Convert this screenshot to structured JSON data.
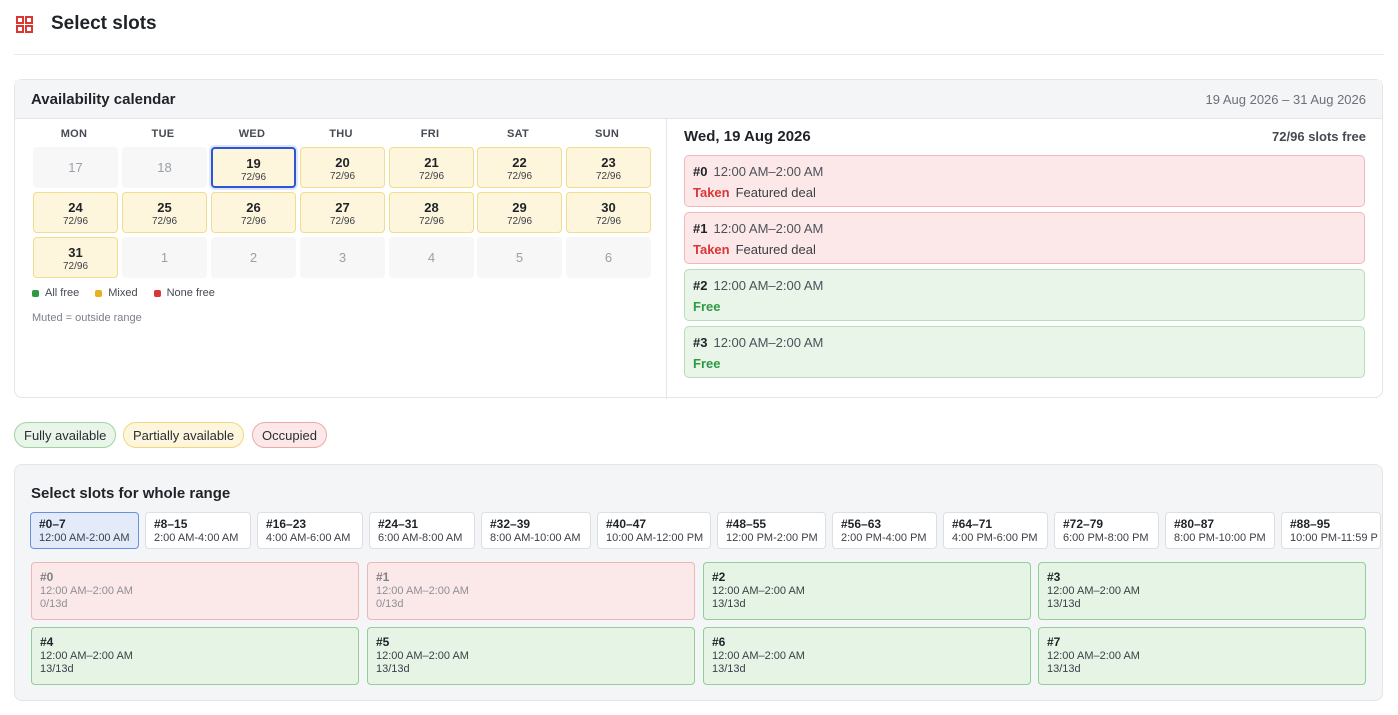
{
  "header": {
    "title": "Select slots",
    "icon": "grid-icon",
    "accent": "#d93636"
  },
  "calendar": {
    "title": "Availability calendar",
    "range": "19 Aug 2026 – 31 Aug 2026",
    "weekdays": [
      "MON",
      "TUE",
      "WED",
      "THU",
      "FRI",
      "SAT",
      "SUN"
    ],
    "days": [
      {
        "n": "17",
        "s": "",
        "state": "muted"
      },
      {
        "n": "18",
        "s": "",
        "state": "muted"
      },
      {
        "n": "19",
        "s": "72/96",
        "state": "mixed",
        "selected": true
      },
      {
        "n": "20",
        "s": "72/96",
        "state": "mixed"
      },
      {
        "n": "21",
        "s": "72/96",
        "state": "mixed"
      },
      {
        "n": "22",
        "s": "72/96",
        "state": "mixed"
      },
      {
        "n": "23",
        "s": "72/96",
        "state": "mixed"
      },
      {
        "n": "24",
        "s": "72/96",
        "state": "mixed"
      },
      {
        "n": "25",
        "s": "72/96",
        "state": "mixed"
      },
      {
        "n": "26",
        "s": "72/96",
        "state": "mixed"
      },
      {
        "n": "27",
        "s": "72/96",
        "state": "mixed"
      },
      {
        "n": "28",
        "s": "72/96",
        "state": "mixed"
      },
      {
        "n": "29",
        "s": "72/96",
        "state": "mixed"
      },
      {
        "n": "30",
        "s": "72/96",
        "state": "mixed"
      },
      {
        "n": "31",
        "s": "72/96",
        "state": "mixed"
      },
      {
        "n": "1",
        "s": "",
        "state": "muted"
      },
      {
        "n": "2",
        "s": "",
        "state": "muted"
      },
      {
        "n": "3",
        "s": "",
        "state": "muted"
      },
      {
        "n": "4",
        "s": "",
        "state": "muted"
      },
      {
        "n": "5",
        "s": "",
        "state": "muted"
      },
      {
        "n": "6",
        "s": "",
        "state": "muted"
      }
    ],
    "legend": [
      {
        "label": "All free",
        "color": "#2e9a45"
      },
      {
        "label": "Mixed",
        "color": "#e8b21c"
      },
      {
        "label": "None free",
        "color": "#d93636"
      }
    ],
    "muted_note": "Muted = outside range"
  },
  "day_detail": {
    "date": "Wed, 19 Aug 2026",
    "free": "72/96 slots free",
    "slots": [
      {
        "id": "#0",
        "time": "12:00 AM–2:00 AM",
        "status": "Taken",
        "note": "Featured deal",
        "taken": true
      },
      {
        "id": "#1",
        "time": "12:00 AM–2:00 AM",
        "status": "Taken",
        "note": "Featured deal",
        "taken": true
      },
      {
        "id": "#2",
        "time": "12:00 AM–2:00 AM",
        "status": "Free",
        "note": "",
        "taken": false
      },
      {
        "id": "#3",
        "time": "12:00 AM–2:00 AM",
        "status": "Free",
        "note": "",
        "taken": false
      }
    ]
  },
  "status_pills": [
    "Fully available",
    "Partially available",
    "Occupied"
  ],
  "range_select": {
    "title": "Select slots for whole range",
    "tabs": [
      {
        "a": "#0–7",
        "b": "12:00 AM-2:00 AM",
        "active": true
      },
      {
        "a": "#8–15",
        "b": "2:00 AM-4:00 AM"
      },
      {
        "a": "#16–23",
        "b": "4:00 AM-6:00 AM"
      },
      {
        "a": "#24–31",
        "b": "6:00 AM-8:00 AM"
      },
      {
        "a": "#32–39",
        "b": "8:00 AM-10:00 AM"
      },
      {
        "a": "#40–47",
        "b": "10:00 AM-12:00 PM"
      },
      {
        "a": "#48–55",
        "b": "12:00 PM-2:00 PM"
      },
      {
        "a": "#56–63",
        "b": "2:00 PM-4:00 PM"
      },
      {
        "a": "#64–71",
        "b": "4:00 PM-6:00 PM"
      },
      {
        "a": "#72–79",
        "b": "6:00 PM-8:00 PM"
      },
      {
        "a": "#80–87",
        "b": "8:00 PM-10:00 PM"
      },
      {
        "a": "#88–95",
        "b": "10:00 PM-11:59 P"
      }
    ],
    "cells": [
      {
        "a": "#0",
        "b": "12:00 AM–2:00 AM",
        "c": "0/13d",
        "taken": true
      },
      {
        "a": "#1",
        "b": "12:00 AM–2:00 AM",
        "c": "0/13d",
        "taken": true
      },
      {
        "a": "#2",
        "b": "12:00 AM–2:00 AM",
        "c": "13/13d",
        "taken": false
      },
      {
        "a": "#3",
        "b": "12:00 AM–2:00 AM",
        "c": "13/13d",
        "taken": false
      },
      {
        "a": "#4",
        "b": "12:00 AM–2:00 AM",
        "c": "13/13d",
        "taken": false
      },
      {
        "a": "#5",
        "b": "12:00 AM–2:00 AM",
        "c": "13/13d",
        "taken": false
      },
      {
        "a": "#6",
        "b": "12:00 AM–2:00 AM",
        "c": "13/13d",
        "taken": false
      },
      {
        "a": "#7",
        "b": "12:00 AM–2:00 AM",
        "c": "13/13d",
        "taken": false
      }
    ]
  }
}
